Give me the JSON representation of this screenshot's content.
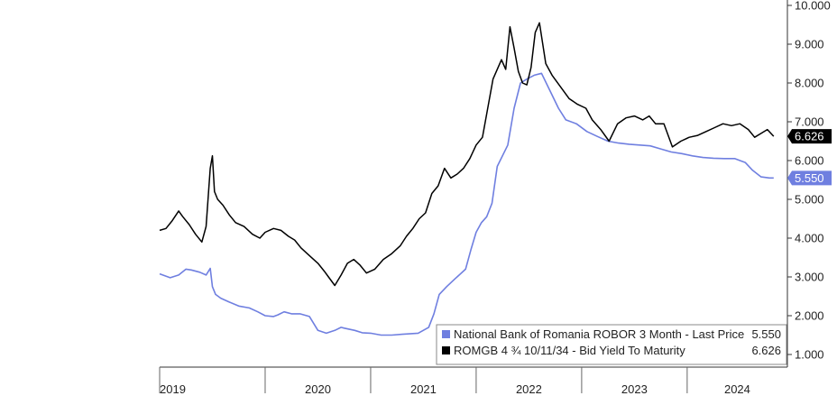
{
  "chart_data": {
    "type": "line",
    "title": "",
    "xlabel": "",
    "ylabel": "",
    "ylim": [
      1.0,
      10.0
    ],
    "y_axis_side": "right",
    "y_ticks": [
      "1.000",
      "2.000",
      "3.000",
      "4.000",
      "5.000",
      "6.000",
      "7.000",
      "8.000",
      "9.000",
      "10.000"
    ],
    "x_year_labels": [
      "2019",
      "2020",
      "2021",
      "2022",
      "2023",
      "2024"
    ],
    "x_range": [
      2019.0,
      2024.95
    ],
    "grid": false,
    "legend_position": "bottom-right",
    "series": [
      {
        "name": "National Bank of Romania ROBOR 3 Month - Last Price",
        "last_value_label": "5.550",
        "color": "#6f7fe0",
        "x": [
          2019.0,
          2019.1,
          2019.18,
          2019.25,
          2019.3,
          2019.38,
          2019.44,
          2019.48,
          2019.5,
          2019.53,
          2019.58,
          2019.66,
          2019.75,
          2019.85,
          2019.93,
          2020.0,
          2020.08,
          2020.12,
          2020.18,
          2020.25,
          2020.33,
          2020.42,
          2020.5,
          2020.58,
          2020.66,
          2020.72,
          2020.75,
          2020.85,
          2020.92,
          2021.0,
          2021.1,
          2021.2,
          2021.3,
          2021.45,
          2021.55,
          2021.6,
          2021.65,
          2021.72,
          2021.8,
          2021.9,
          2021.95,
          2022.0,
          2022.05,
          2022.1,
          2022.15,
          2022.2,
          2022.3,
          2022.36,
          2022.42,
          2022.48,
          2022.55,
          2022.62,
          2022.7,
          2022.78,
          2022.85,
          2022.95,
          2023.05,
          2023.15,
          2023.25,
          2023.35,
          2023.45,
          2023.55,
          2023.65,
          2023.75,
          2023.85,
          2023.95,
          2024.05,
          2024.15,
          2024.25,
          2024.35,
          2024.45,
          2024.5,
          2024.55,
          2024.62,
          2024.7,
          2024.78,
          2024.82
        ],
        "values": [
          3.08,
          2.98,
          3.05,
          3.2,
          3.18,
          3.12,
          3.05,
          3.22,
          2.75,
          2.55,
          2.45,
          2.35,
          2.25,
          2.2,
          2.1,
          2.0,
          1.98,
          2.02,
          2.1,
          2.05,
          2.05,
          1.98,
          1.62,
          1.55,
          1.62,
          1.7,
          1.68,
          1.62,
          1.56,
          1.55,
          1.5,
          1.5,
          1.52,
          1.55,
          1.7,
          2.05,
          2.55,
          2.75,
          2.95,
          3.2,
          3.7,
          4.15,
          4.4,
          4.55,
          4.9,
          5.85,
          6.4,
          7.35,
          8.0,
          8.1,
          8.2,
          8.25,
          7.8,
          7.35,
          7.05,
          6.95,
          6.75,
          6.62,
          6.5,
          6.45,
          6.42,
          6.4,
          6.38,
          6.3,
          6.22,
          6.18,
          6.12,
          6.08,
          6.06,
          6.05,
          6.05,
          6.0,
          5.95,
          5.75,
          5.58,
          5.55,
          5.55
        ]
      },
      {
        "name": "ROMGB 4 ¾ 10/11/34 - Bid Yield To Maturity",
        "last_value_label": "6.626",
        "color": "#000000",
        "x": [
          2019.0,
          2019.06,
          2019.12,
          2019.18,
          2019.22,
          2019.28,
          2019.34,
          2019.4,
          2019.44,
          2019.48,
          2019.5,
          2019.52,
          2019.55,
          2019.6,
          2019.66,
          2019.72,
          2019.8,
          2019.88,
          2019.95,
          2020.0,
          2020.08,
          2020.15,
          2020.22,
          2020.28,
          2020.34,
          2020.42,
          2020.5,
          2020.56,
          2020.6,
          2020.66,
          2020.72,
          2020.78,
          2020.84,
          2020.9,
          2020.96,
          2021.04,
          2021.12,
          2021.2,
          2021.28,
          2021.34,
          2021.4,
          2021.46,
          2021.52,
          2021.58,
          2021.64,
          2021.7,
          2021.76,
          2021.82,
          2021.88,
          2021.94,
          2022.0,
          2022.06,
          2022.1,
          2022.16,
          2022.2,
          2022.24,
          2022.28,
          2022.32,
          2022.36,
          2022.4,
          2022.44,
          2022.48,
          2022.52,
          2022.56,
          2022.6,
          2022.66,
          2022.72,
          2022.8,
          2022.88,
          2022.96,
          2023.04,
          2023.1,
          2023.18,
          2023.26,
          2023.34,
          2023.42,
          2023.5,
          2023.58,
          2023.64,
          2023.7,
          2023.78,
          2023.86,
          2023.94,
          2024.02,
          2024.1,
          2024.18,
          2024.26,
          2024.34,
          2024.42,
          2024.5,
          2024.58,
          2024.64,
          2024.7,
          2024.76,
          2024.82
        ],
        "values": [
          4.2,
          4.25,
          4.45,
          4.7,
          4.55,
          4.35,
          4.1,
          3.9,
          4.3,
          5.8,
          6.12,
          5.2,
          5.0,
          4.85,
          4.6,
          4.4,
          4.3,
          4.1,
          4.0,
          4.15,
          4.25,
          4.2,
          4.05,
          3.95,
          3.75,
          3.55,
          3.35,
          3.15,
          3.0,
          2.78,
          3.05,
          3.35,
          3.45,
          3.3,
          3.1,
          3.2,
          3.45,
          3.6,
          3.8,
          4.05,
          4.25,
          4.5,
          4.65,
          5.15,
          5.35,
          5.8,
          5.55,
          5.65,
          5.8,
          6.05,
          6.4,
          6.6,
          7.2,
          8.1,
          8.35,
          8.6,
          8.35,
          9.45,
          8.9,
          8.3,
          8.0,
          7.95,
          8.4,
          9.3,
          9.55,
          8.5,
          8.2,
          7.9,
          7.6,
          7.45,
          7.35,
          7.05,
          6.8,
          6.5,
          6.95,
          7.1,
          7.15,
          7.05,
          7.15,
          6.95,
          6.95,
          6.35,
          6.5,
          6.6,
          6.65,
          6.75,
          6.85,
          6.95,
          6.9,
          6.95,
          6.8,
          6.6,
          6.7,
          6.8,
          6.626
        ]
      }
    ]
  }
}
